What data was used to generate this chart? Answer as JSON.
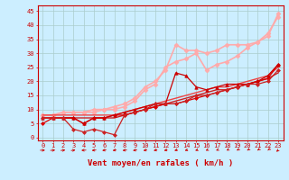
{
  "title": "",
  "xlabel": "Vent moyen/en rafales ( km/h )",
  "background_color": "#cceeff",
  "grid_color": "#aacccc",
  "x_ticks": [
    0,
    1,
    2,
    3,
    4,
    5,
    6,
    7,
    8,
    9,
    10,
    11,
    12,
    13,
    14,
    15,
    16,
    17,
    18,
    19,
    20,
    21,
    22,
    23
  ],
  "yticks": [
    0,
    5,
    10,
    15,
    20,
    25,
    30,
    35,
    40,
    45
  ],
  "ylim": [
    -1,
    47
  ],
  "xlim": [
    -0.5,
    23.5
  ],
  "series": [
    {
      "x": [
        0,
        1,
        2,
        3,
        4,
        5,
        6,
        7,
        8,
        9,
        10,
        11,
        12,
        13,
        14,
        15,
        16,
        17,
        18,
        19,
        20,
        21,
        22,
        23
      ],
      "y": [
        5,
        7,
        7,
        7,
        5,
        7,
        7,
        8,
        8,
        9,
        10,
        11,
        12,
        12,
        13,
        14,
        15,
        16,
        17,
        18,
        19,
        20,
        21,
        26
      ],
      "color": "#dd0000",
      "lw": 0.9,
      "marker": "D",
      "ms": 2.0,
      "zorder": 4
    },
    {
      "x": [
        0,
        1,
        2,
        3,
        4,
        5,
        6,
        7,
        8,
        9,
        10,
        11,
        12,
        13,
        14,
        15,
        16,
        17,
        18,
        19,
        20,
        21,
        22,
        23
      ],
      "y": [
        7,
        7,
        7,
        7,
        5,
        7,
        7,
        8,
        9,
        10,
        11,
        12,
        12,
        23,
        22,
        18,
        17,
        18,
        19,
        19,
        19,
        20,
        22,
        26
      ],
      "color": "#cc0000",
      "lw": 0.9,
      "marker": "^",
      "ms": 2.5,
      "zorder": 4
    },
    {
      "x": [
        0,
        1,
        2,
        3,
        4,
        5,
        6,
        7,
        8,
        9,
        10,
        11,
        12,
        13,
        14,
        15,
        16,
        17,
        18,
        19,
        20,
        21,
        22,
        23
      ],
      "y": [
        7,
        7,
        7,
        3,
        2,
        3,
        2,
        1,
        8,
        9,
        10,
        12,
        12,
        12,
        13,
        15,
        15,
        16,
        17,
        18,
        19,
        19,
        20,
        24
      ],
      "color": "#cc2222",
      "lw": 0.9,
      "marker": "D",
      "ms": 2.0,
      "zorder": 4
    },
    {
      "x": [
        0,
        1,
        2,
        3,
        4,
        5,
        6,
        7,
        8,
        9,
        10,
        11,
        12,
        13,
        14,
        15,
        16,
        17,
        18,
        19,
        20,
        21,
        22,
        23
      ],
      "y": [
        7,
        7,
        7,
        7,
        7,
        7,
        7,
        7,
        8,
        9,
        10,
        11,
        12,
        13,
        14,
        15,
        16,
        17,
        17,
        18,
        19,
        20,
        21,
        23
      ],
      "color": "#cc2222",
      "lw": 1.0,
      "marker": null,
      "ms": 0,
      "zorder": 3
    },
    {
      "x": [
        0,
        1,
        2,
        3,
        4,
        5,
        6,
        7,
        8,
        9,
        10,
        11,
        12,
        13,
        14,
        15,
        16,
        17,
        18,
        19,
        20,
        21,
        22,
        23
      ],
      "y": [
        8,
        8,
        8,
        8,
        8,
        8,
        8,
        8,
        9,
        10,
        11,
        12,
        13,
        14,
        15,
        16,
        17,
        18,
        18,
        19,
        20,
        21,
        22,
        25
      ],
      "color": "#ee4444",
      "lw": 1.0,
      "marker": null,
      "ms": 0,
      "zorder": 3
    },
    {
      "x": [
        0,
        1,
        2,
        3,
        4,
        5,
        6,
        7,
        8,
        9,
        10,
        11,
        12,
        13,
        14,
        15,
        16,
        17,
        18,
        19,
        20,
        21,
        22,
        23
      ],
      "y": [
        8,
        8,
        9,
        9,
        9,
        9,
        10,
        10,
        11,
        13,
        17,
        19,
        25,
        27,
        28,
        30,
        24,
        26,
        27,
        29,
        32,
        34,
        37,
        43
      ],
      "color": "#ffaaaa",
      "lw": 1.2,
      "marker": "D",
      "ms": 2.5,
      "zorder": 2
    },
    {
      "x": [
        0,
        1,
        2,
        3,
        4,
        5,
        6,
        7,
        8,
        9,
        10,
        11,
        12,
        13,
        14,
        15,
        16,
        17,
        18,
        19,
        20,
        21,
        22,
        23
      ],
      "y": [
        8,
        8,
        9,
        9,
        9,
        10,
        10,
        11,
        12,
        14,
        18,
        20,
        24,
        33,
        31,
        31,
        30,
        31,
        33,
        33,
        33,
        34,
        36,
        44
      ],
      "color": "#ffaaaa",
      "lw": 1.2,
      "marker": "D",
      "ms": 2.5,
      "zorder": 2
    }
  ],
  "tick_fontsize": 5.0,
  "label_fontsize": 6.5,
  "label_color": "#cc0000",
  "tick_color": "#cc0000",
  "axis_color": "#cc0000"
}
